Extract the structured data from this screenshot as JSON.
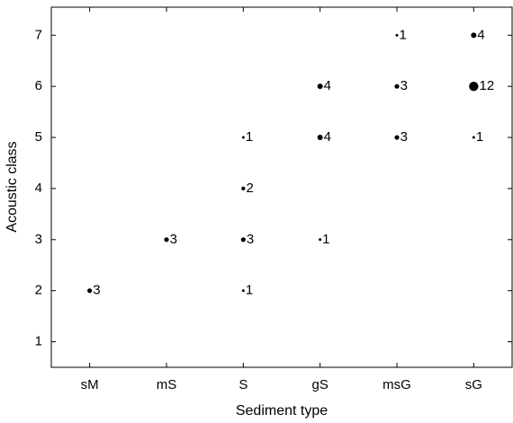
{
  "chart_data": {
    "type": "scatter",
    "x_label": "Sediment type",
    "y_label": "Acoustic class",
    "categories": [
      "sM",
      "mS",
      "S",
      "gS",
      "msG",
      "sG"
    ],
    "x": [
      "sM",
      "mS",
      "S",
      "S",
      "S",
      "S",
      "gS",
      "gS",
      "gS",
      "msG",
      "msG",
      "msG",
      "sG",
      "sG",
      "sG"
    ],
    "y": [
      2,
      3,
      5,
      4,
      3,
      2,
      6,
      5,
      3,
      7,
      6,
      5,
      7,
      6,
      5
    ],
    "sizes": [
      3,
      3,
      1,
      2,
      3,
      1,
      4,
      4,
      1,
      1,
      3,
      3,
      4,
      12,
      1
    ],
    "color": "#000000",
    "ylim": [
      0.5,
      7.55
    ],
    "yticks": [
      1,
      2,
      3,
      4,
      5,
      6,
      7
    ]
  }
}
